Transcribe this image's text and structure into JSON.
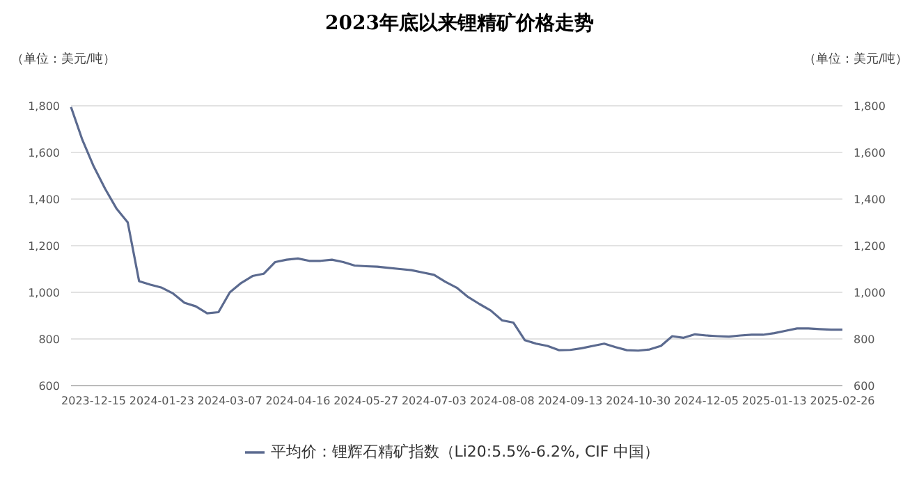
{
  "chart_data": {
    "type": "line",
    "title": "2023年底以来锂精矿价格走势",
    "ylabel": "（单位：美元/吨）",
    "y2label": "（单位：美元/吨）",
    "categories": [
      null,
      null,
      "2023-12-15",
      null,
      null,
      null,
      null,
      null,
      "2024-01-23",
      null,
      null,
      null,
      null,
      null,
      "2024-03-07",
      null,
      null,
      null,
      null,
      null,
      "2024-04-16",
      null,
      null,
      null,
      null,
      null,
      "2024-05-27",
      null,
      null,
      null,
      null,
      null,
      "2024-07-03",
      null,
      null,
      null,
      null,
      null,
      "2024-08-08",
      null,
      null,
      null,
      null,
      null,
      "2024-09-13",
      null,
      null,
      null,
      null,
      null,
      "2024-10-30",
      null,
      null,
      null,
      null,
      null,
      "2024-12-05",
      null,
      null,
      null,
      null,
      null,
      "2025-01-13",
      null,
      null,
      null,
      null,
      null,
      "2025-02-26"
    ],
    "series": [
      {
        "name": "平均价：锂辉石精矿指数（Li20:5.5%-6.2%, CIF 中国）",
        "color": "#5b6a8f",
        "values": [
          1795,
          1654,
          1540,
          1445,
          1360,
          1300,
          1048,
          1033,
          1020,
          995,
          955,
          940,
          910,
          915,
          1000,
          1040,
          1070,
          1080,
          1130,
          1140,
          1145,
          1135,
          1135,
          1140,
          1130,
          1115,
          1112,
          1110,
          1105,
          1100,
          1095,
          1085,
          1075,
          1045,
          1020,
          980,
          950,
          922,
          880,
          870,
          795,
          780,
          770,
          752,
          753,
          760,
          770,
          780,
          765,
          752,
          750,
          755,
          770,
          812,
          805,
          820,
          815,
          812,
          810,
          815,
          818,
          818,
          825,
          835,
          845,
          845,
          842,
          840,
          840
        ]
      }
    ],
    "ylim": [
      600,
      1800
    ],
    "yticks": [
      {
        "value": 600,
        "label": "600"
      },
      {
        "value": 800,
        "label": "800"
      },
      {
        "value": 1000,
        "label": "1,000"
      },
      {
        "value": 1200,
        "label": "1,200"
      },
      {
        "value": 1400,
        "label": "1,400"
      },
      {
        "value": 1600,
        "label": "1,600"
      },
      {
        "value": 1800,
        "label": "1,800"
      }
    ],
    "y2lim": [
      600,
      1800
    ],
    "y2ticks": [
      {
        "value": 600,
        "label": "600"
      },
      {
        "value": 800,
        "label": "800"
      },
      {
        "value": 1000,
        "label": "1,000"
      },
      {
        "value": 1200,
        "label": "1,200"
      },
      {
        "value": 1400,
        "label": "1,400"
      },
      {
        "value": 1600,
        "label": "1,600"
      },
      {
        "value": 1800,
        "label": "1,800"
      }
    ],
    "grid": "y",
    "legend": "bottom",
    "marker": "none",
    "line_style": "solid"
  }
}
